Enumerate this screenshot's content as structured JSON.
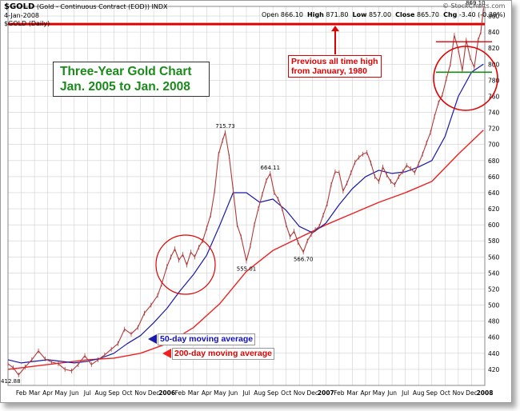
{
  "header": {
    "symbol": "$GOLD",
    "description": "(Gold - Continuous Contract (EOD))",
    "exchange": "INDX",
    "date": "4-Jan-2008",
    "open_label": "Open",
    "open": "866.10",
    "high_label": "High",
    "high": "871.80",
    "low_label": "Low",
    "low": "857.00",
    "close_label": "Close",
    "close": "865.70",
    "chg_label": "Chg",
    "chg": "-3.40 (-0.39%)",
    "watermark": "© StockCharts.com",
    "legend": "$GOLD (Daily)"
  },
  "annotations": {
    "title_line1": "Three-Year Gold Chart",
    "title_line2": "Jan. 2005 to Jan. 2008",
    "record_line1": "Previous all time high",
    "record_line2": "from January, 1980",
    "ma50": "50-day moving average",
    "ma200": "200-day moving average"
  },
  "colors": {
    "price": "#b03a3a",
    "ma50": "#1a1aa8",
    "ma200": "#ee2020",
    "record_line": "#e00000",
    "title_text": "#1a8a1a",
    "circles": "#e00000",
    "grid": "#d0d0d0"
  },
  "chart_data": {
    "type": "line",
    "title": "Three-Year Gold Chart",
    "subtitle": "Jan. 2005 to Jan. 2008",
    "ylim": [
      400,
      872
    ],
    "y_ticks": [
      420,
      440,
      460,
      480,
      500,
      520,
      540,
      560,
      580,
      600,
      620,
      640,
      660,
      680,
      700,
      720,
      740,
      760,
      780,
      800,
      820,
      840,
      860
    ],
    "x_months": [
      "Feb",
      "Mar",
      "Apr",
      "May",
      "Jun",
      "Jul",
      "Aug",
      "Sep",
      "Oct",
      "Nov",
      "Dec",
      "2006",
      "Feb",
      "Mar",
      "Apr",
      "May",
      "Jun",
      "Jul",
      "Aug",
      "Sep",
      "Oct",
      "Nov",
      "Dec",
      "2007",
      "Feb",
      "Mar",
      "Apr",
      "May",
      "Jun",
      "Jul",
      "Aug",
      "Sep",
      "Oct",
      "Nov",
      "Dec",
      "2008"
    ],
    "x_start_month": 1,
    "grid": true,
    "horizontal_line": 850,
    "point_labels": [
      {
        "t": 0.2,
        "v": 412.88,
        "text": "412.88"
      },
      {
        "t": 16.4,
        "v": 715.73,
        "text": "715.73"
      },
      {
        "t": 18.0,
        "v": 555.01,
        "text": "555.01"
      },
      {
        "t": 19.8,
        "v": 664.11,
        "text": "664.11"
      },
      {
        "t": 22.3,
        "v": 566.7,
        "text": "566.70"
      },
      {
        "t": 35.9,
        "v": 869.1,
        "text": "869.10"
      }
    ],
    "series": [
      {
        "name": "$GOLD (Daily)",
        "points": [
          [
            0,
            427
          ],
          [
            0.4,
            422
          ],
          [
            0.8,
            413
          ],
          [
            1.3,
            423
          ],
          [
            1.8,
            432
          ],
          [
            2.3,
            443
          ],
          [
            2.8,
            433
          ],
          [
            3.3,
            429
          ],
          [
            3.8,
            427
          ],
          [
            4.3,
            420
          ],
          [
            4.8,
            418
          ],
          [
            5.3,
            426
          ],
          [
            5.8,
            437
          ],
          [
            6.3,
            426
          ],
          [
            6.8,
            432
          ],
          [
            7.3,
            438
          ],
          [
            7.8,
            445
          ],
          [
            8.3,
            452
          ],
          [
            8.8,
            470
          ],
          [
            9.3,
            464
          ],
          [
            9.8,
            472
          ],
          [
            10.3,
            490
          ],
          [
            10.8,
            500
          ],
          [
            11.3,
            512
          ],
          [
            11.6,
            526
          ],
          [
            12.0,
            548
          ],
          [
            12.3,
            560
          ],
          [
            12.6,
            570
          ],
          [
            12.9,
            556
          ],
          [
            13.2,
            563
          ],
          [
            13.5,
            550
          ],
          [
            13.8,
            566
          ],
          [
            14.1,
            560
          ],
          [
            14.4,
            572
          ],
          [
            14.7,
            580
          ],
          [
            15.0,
            596
          ],
          [
            15.3,
            612
          ],
          [
            15.6,
            642
          ],
          [
            15.9,
            688
          ],
          [
            16.2,
            705
          ],
          [
            16.4,
            715
          ],
          [
            16.7,
            685
          ],
          [
            17.0,
            644
          ],
          [
            17.3,
            600
          ],
          [
            17.6,
            585
          ],
          [
            18.0,
            555
          ],
          [
            18.3,
            574
          ],
          [
            18.6,
            600
          ],
          [
            18.9,
            620
          ],
          [
            19.2,
            638
          ],
          [
            19.5,
            655
          ],
          [
            19.8,
            664
          ],
          [
            20.1,
            640
          ],
          [
            20.4,
            632
          ],
          [
            20.7,
            620
          ],
          [
            21.0,
            600
          ],
          [
            21.3,
            585
          ],
          [
            21.6,
            592
          ],
          [
            21.9,
            578
          ],
          [
            22.3,
            566
          ],
          [
            22.6,
            580
          ],
          [
            22.9,
            588
          ],
          [
            23.2,
            594
          ],
          [
            23.5,
            598
          ],
          [
            23.8,
            612
          ],
          [
            24.1,
            626
          ],
          [
            24.4,
            650
          ],
          [
            24.7,
            666
          ],
          [
            25.0,
            665
          ],
          [
            25.3,
            642
          ],
          [
            25.6,
            652
          ],
          [
            25.9,
            665
          ],
          [
            26.2,
            678
          ],
          [
            26.5,
            684
          ],
          [
            26.8,
            688
          ],
          [
            27.1,
            690
          ],
          [
            27.4,
            677
          ],
          [
            27.7,
            660
          ],
          [
            28.0,
            654
          ],
          [
            28.3,
            672
          ],
          [
            28.6,
            662
          ],
          [
            28.9,
            654
          ],
          [
            29.2,
            650
          ],
          [
            29.5,
            660
          ],
          [
            29.8,
            666
          ],
          [
            30.1,
            674
          ],
          [
            30.4,
            670
          ],
          [
            30.7,
            665
          ],
          [
            31.0,
            676
          ],
          [
            31.3,
            688
          ],
          [
            31.6,
            702
          ],
          [
            31.9,
            715
          ],
          [
            32.2,
            735
          ],
          [
            32.5,
            752
          ],
          [
            32.8,
            762
          ],
          [
            33.1,
            782
          ],
          [
            33.4,
            800
          ],
          [
            33.7,
            836
          ],
          [
            34.0,
            818
          ],
          [
            34.3,
            792
          ],
          [
            34.6,
            830
          ],
          [
            34.9,
            808
          ],
          [
            35.2,
            796
          ],
          [
            35.5,
            830
          ],
          [
            35.7,
            840
          ],
          [
            35.9,
            869
          ]
        ]
      },
      {
        "name": "50-day moving average",
        "points": [
          [
            0,
            432
          ],
          [
            1,
            428
          ],
          [
            2,
            430
          ],
          [
            3,
            432
          ],
          [
            4,
            430
          ],
          [
            5,
            428
          ],
          [
            6,
            430
          ],
          [
            7,
            434
          ],
          [
            8,
            440
          ],
          [
            9,
            452
          ],
          [
            10,
            462
          ],
          [
            11,
            478
          ],
          [
            12,
            496
          ],
          [
            13,
            518
          ],
          [
            14,
            538
          ],
          [
            15,
            562
          ],
          [
            16,
            600
          ],
          [
            17,
            640
          ],
          [
            18,
            640
          ],
          [
            19,
            628
          ],
          [
            20,
            632
          ],
          [
            21,
            618
          ],
          [
            22,
            598
          ],
          [
            23,
            590
          ],
          [
            24,
            602
          ],
          [
            25,
            625
          ],
          [
            26,
            645
          ],
          [
            27,
            660
          ],
          [
            28,
            668
          ],
          [
            29,
            664
          ],
          [
            30,
            666
          ],
          [
            31,
            672
          ],
          [
            32,
            680
          ],
          [
            33,
            710
          ],
          [
            34,
            760
          ],
          [
            35,
            790
          ],
          [
            35.9,
            800
          ]
        ]
      },
      {
        "name": "200-day moving average",
        "points": [
          [
            0,
            420
          ],
          [
            2,
            424
          ],
          [
            4,
            428
          ],
          [
            6,
            432
          ],
          [
            8,
            434
          ],
          [
            10,
            440
          ],
          [
            12,
            452
          ],
          [
            14,
            472
          ],
          [
            16,
            502
          ],
          [
            18,
            542
          ],
          [
            20,
            568
          ],
          [
            22,
            584
          ],
          [
            24,
            600
          ],
          [
            26,
            614
          ],
          [
            28,
            628
          ],
          [
            30,
            640
          ],
          [
            32,
            654
          ],
          [
            34,
            688
          ],
          [
            35.9,
            718
          ]
        ]
      }
    ]
  }
}
